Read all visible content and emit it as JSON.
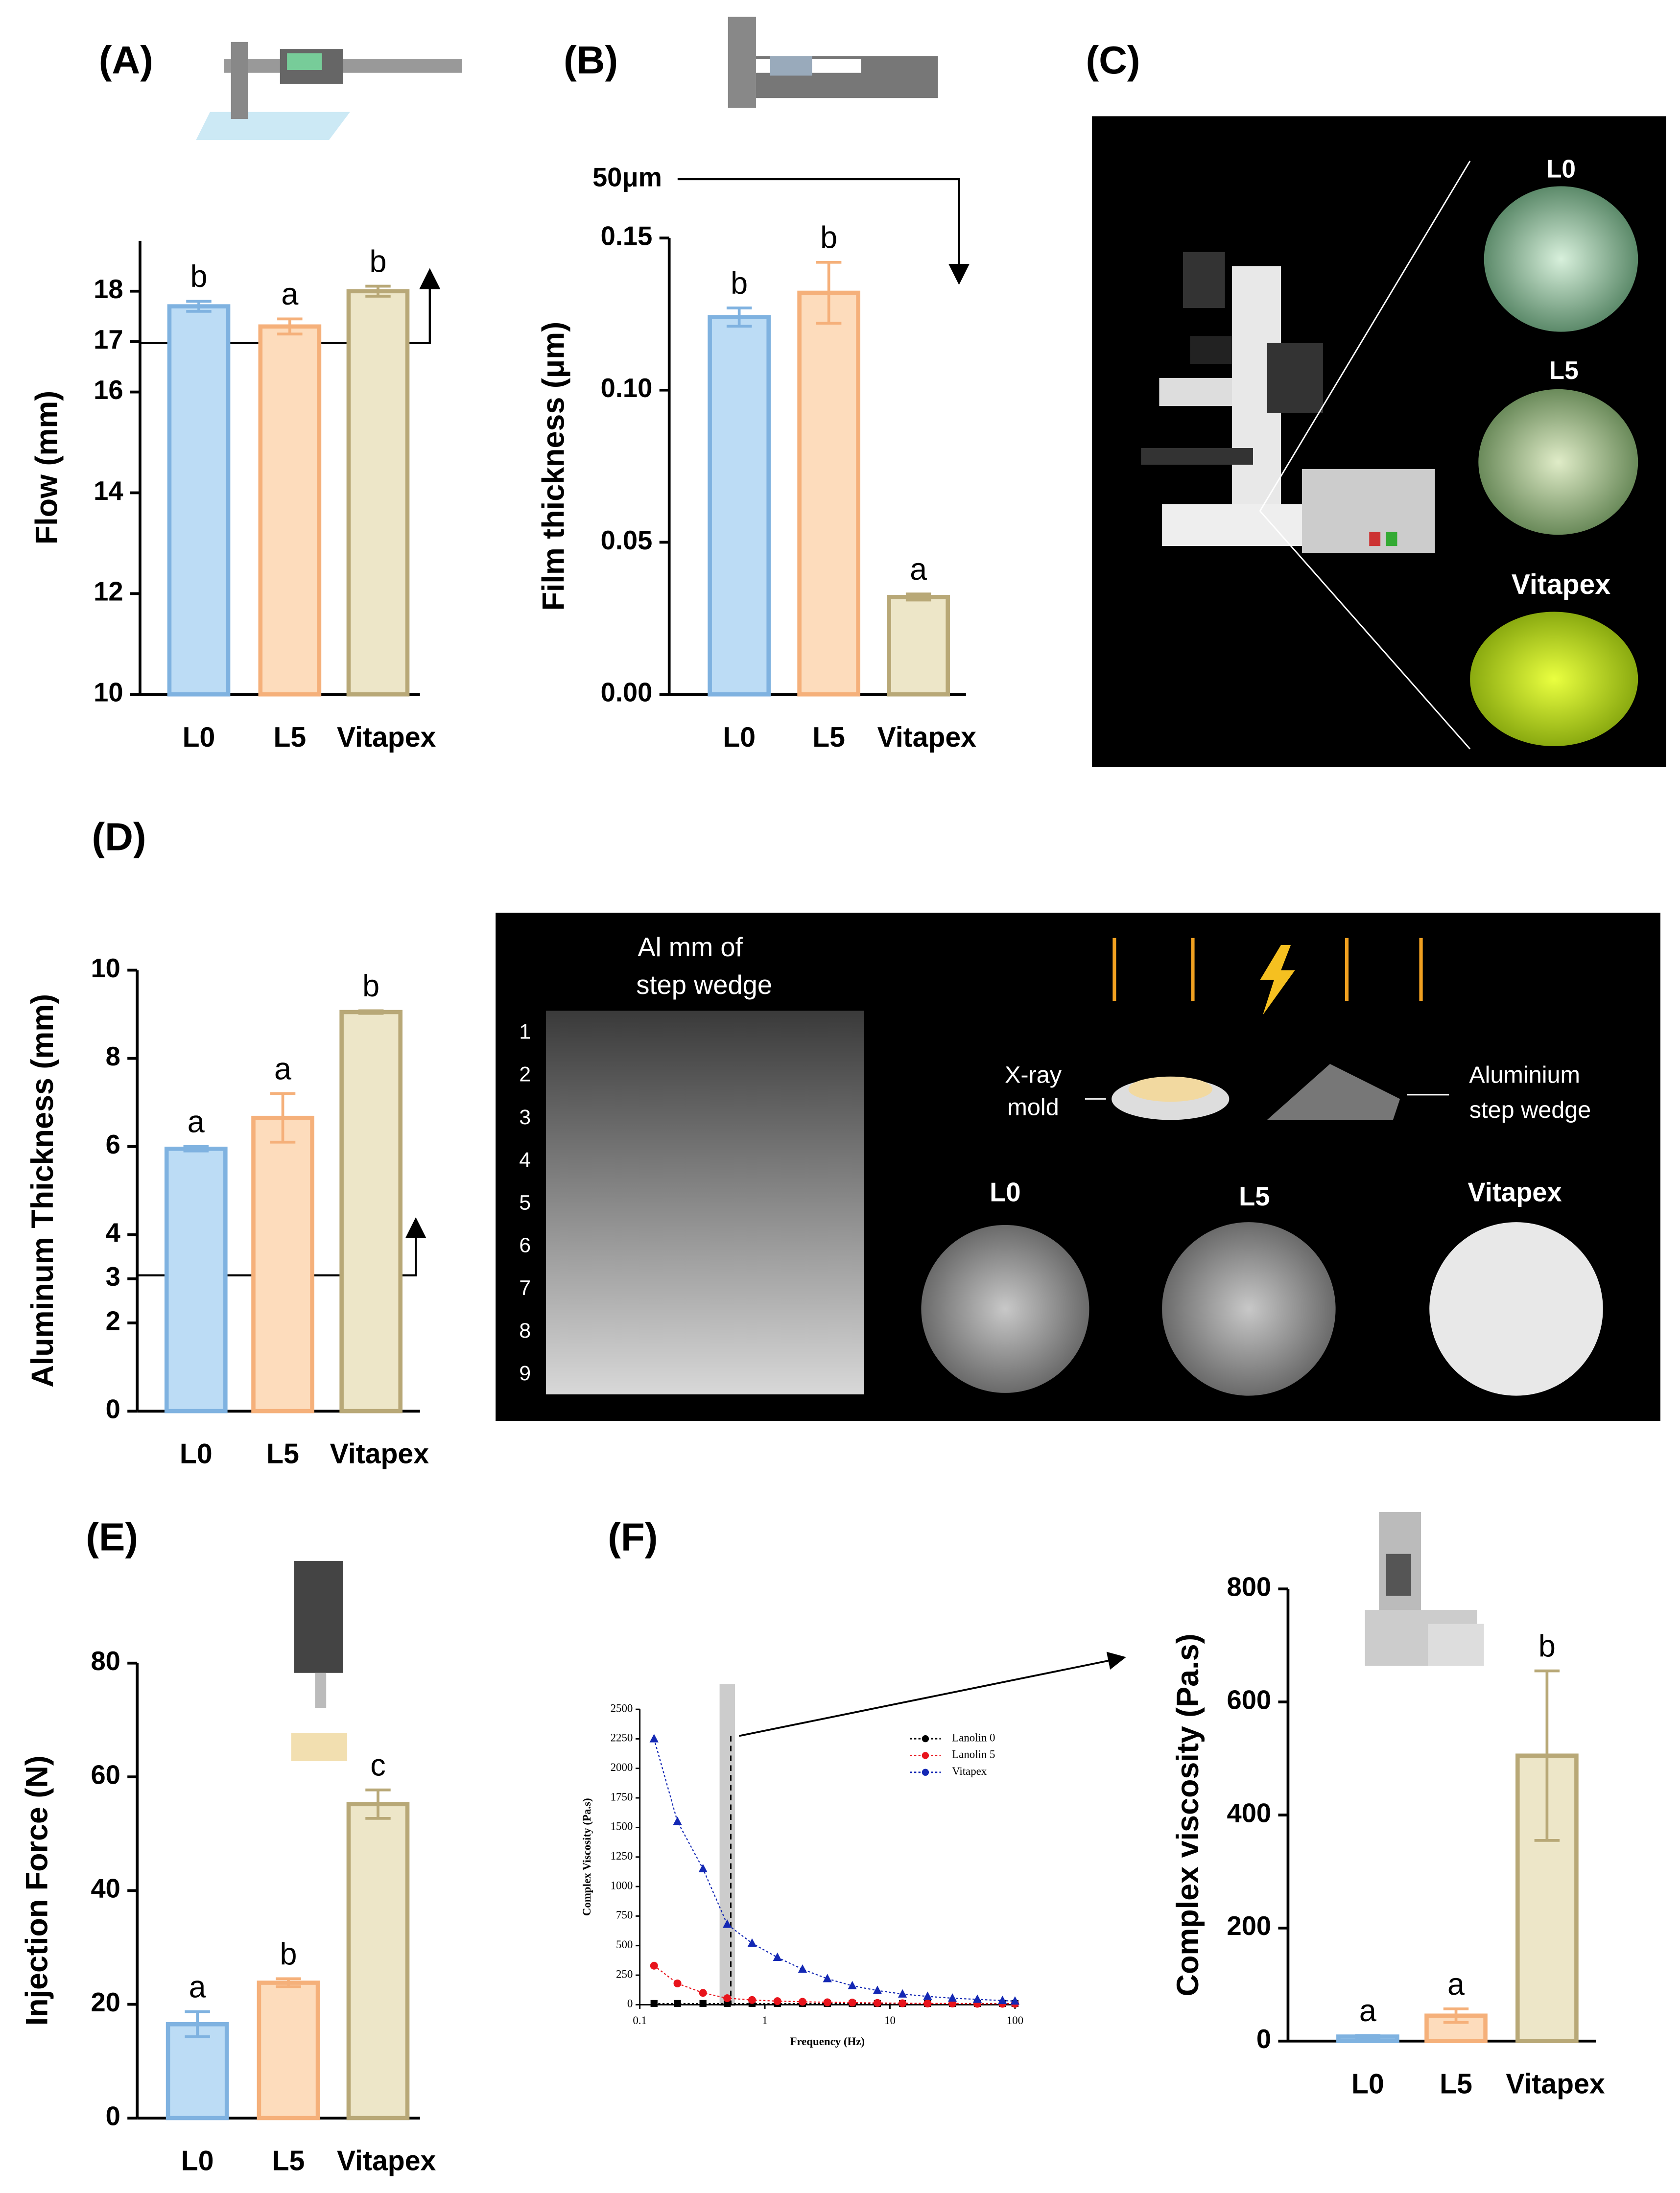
{
  "figure": {
    "panel_labels": [
      "(A)",
      "(B)",
      "(C)",
      "(D)",
      "(E)",
      "(F)"
    ],
    "panel_c": {
      "samples": [
        "L0",
        "L5",
        "Vitapex"
      ]
    },
    "panel_d_image": {
      "wedge_title": [
        "Al mm of",
        "step wedge"
      ],
      "wedge_steps": [
        1,
        2,
        3,
        4,
        5,
        6,
        7,
        8,
        9
      ],
      "mold_label": [
        "X-ray",
        "mold"
      ],
      "wedge_label": [
        "Aluminium",
        "step wedge"
      ],
      "samples": [
        "L0",
        "L5",
        "Vitapex"
      ]
    },
    "panel_b_note": "50μm"
  },
  "chart_data": [
    {
      "type": "bar",
      "ylabel": "Flow (mm)",
      "categories": [
        "L0",
        "L5",
        "Vitapex"
      ],
      "values": [
        17.7,
        17.3,
        18.0
      ],
      "errors": [
        0.1,
        0.15,
        0.1
      ],
      "letters": [
        "b",
        "a",
        "b"
      ],
      "colors": [
        "#bcdcf5",
        "#fddcbc",
        "#ede6c8"
      ],
      "edge_colors": [
        "#7fb2e0",
        "#f5b07a",
        "#b8a877"
      ],
      "ylim": [
        10,
        19
      ],
      "yticks": [
        10,
        12,
        14,
        16,
        17,
        18
      ]
    },
    {
      "type": "bar",
      "ylabel": "Film thickness (μm)",
      "categories": [
        "L0",
        "L5",
        "Vitapex"
      ],
      "values": [
        0.124,
        0.132,
        0.032
      ],
      "errors": [
        0.003,
        0.01,
        0.001
      ],
      "letters": [
        "b",
        "b",
        "a"
      ],
      "colors": [
        "#bcdcf5",
        "#fddcbc",
        "#ede6c8"
      ],
      "edge_colors": [
        "#7fb2e0",
        "#f5b07a",
        "#b8a877"
      ],
      "ylim": [
        0,
        0.15
      ],
      "yticks": [
        {
          "value": 0,
          "label": "0.00"
        },
        0.05,
        {
          "value": 0.1,
          "label": "0.10"
        },
        0.15
      ]
    },
    {
      "type": "bar",
      "ylabel": "Aluminum Thickness (mm)",
      "categories": [
        "L0",
        "L5",
        "Vitapex"
      ],
      "values": [
        5.95,
        6.65,
        9.05
      ],
      "errors": [
        0.05,
        0.55,
        0.03
      ],
      "letters": [
        "a",
        "a",
        "b"
      ],
      "colors": [
        "#bcdcf5",
        "#fddcbc",
        "#ede6c8"
      ],
      "edge_colors": [
        "#7fb2e0",
        "#f5b07a",
        "#b8a877"
      ],
      "ylim": [
        0,
        10
      ],
      "yticks": [
        0,
        2,
        3,
        4,
        6,
        8,
        10
      ]
    },
    {
      "type": "bar",
      "ylabel": "Injection Force (N)",
      "categories": [
        "L0",
        "L5",
        "Vitapex"
      ],
      "values": [
        16.5,
        23.8,
        55.2
      ],
      "errors": [
        2.2,
        0.7,
        2.5
      ],
      "letters": [
        "a",
        "b",
        "c"
      ],
      "colors": [
        "#bcdcf5",
        "#fddcbc",
        "#ede6c8"
      ],
      "edge_colors": [
        "#7fb2e0",
        "#f5b07a",
        "#b8a877"
      ],
      "ylim": [
        0,
        80
      ],
      "yticks": [
        0,
        20,
        40,
        60,
        80
      ]
    },
    {
      "type": "line",
      "ylabel": "Complex Viscosity (Pa.s)",
      "xlabel": "Frequency (Hz)",
      "log_x": true,
      "x": [
        0.13,
        0.2,
        0.32,
        0.5,
        0.79,
        1.26,
        2,
        3.16,
        5,
        7.94,
        12.6,
        20,
        31.6,
        50,
        79.4,
        100
      ],
      "series": [
        {
          "name": "Lanolin 0",
          "color": "#000000",
          "marker": "square",
          "values": [
            10,
            10,
            10,
            10,
            10,
            10,
            10,
            10,
            10,
            10,
            10,
            10,
            10,
            10,
            10,
            10
          ]
        },
        {
          "name": "Lanolin 5",
          "color": "#e8141c",
          "marker": "circle",
          "values": [
            330,
            180,
            100,
            55,
            40,
            30,
            25,
            20,
            18,
            15,
            12,
            10,
            10,
            8,
            8,
            8
          ]
        },
        {
          "name": "Vitapex",
          "color": "#1428b4",
          "marker": "triangle",
          "values": [
            2250,
            1550,
            1150,
            680,
            520,
            400,
            300,
            220,
            160,
            120,
            90,
            70,
            55,
            45,
            35,
            30
          ]
        }
      ],
      "xlim": [
        0.1,
        100
      ],
      "xticks": [
        0.1,
        1,
        10,
        100
      ],
      "ylim": [
        0,
        2500
      ],
      "yticks": [
        0,
        250,
        500,
        750,
        1000,
        1250,
        1500,
        1750,
        2000,
        2250,
        2500
      ]
    },
    {
      "type": "bar",
      "ylabel": "Complex viscosity (Pa.s)",
      "categories": [
        "L0",
        "L5",
        "Vitapex"
      ],
      "values": [
        8,
        45,
        505
      ],
      "errors": [
        2,
        12,
        150
      ],
      "letters": [
        "a",
        "a",
        "b"
      ],
      "colors": [
        "#bcdcf5",
        "#fddcbc",
        "#ede6c8"
      ],
      "edge_colors": [
        "#7fb2e0",
        "#f5b07a",
        "#b8a877"
      ],
      "ylim": [
        0,
        800
      ],
      "yticks": [
        0,
        200,
        400,
        600,
        800
      ]
    }
  ]
}
